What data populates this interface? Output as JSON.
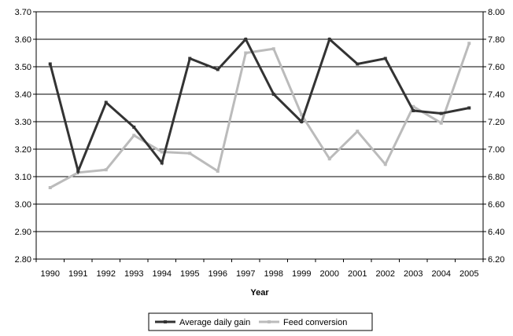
{
  "chart_data": {
    "type": "line",
    "title": "",
    "xlabel": "Year",
    "ylabel": "",
    "categories": [
      "1990",
      "1991",
      "1992",
      "1993",
      "1994",
      "1995",
      "1996",
      "1997",
      "1998",
      "1999",
      "2000",
      "2001",
      "2002",
      "2003",
      "2004",
      "2005"
    ],
    "y_left": {
      "min": 2.8,
      "max": 3.7,
      "ticks": [
        "2.80",
        "2.90",
        "3.00",
        "3.10",
        "3.20",
        "3.30",
        "3.40",
        "3.50",
        "3.60",
        "3.70"
      ]
    },
    "y_right": {
      "min": 6.2,
      "max": 8.0,
      "ticks": [
        "6.20",
        "6.40",
        "6.60",
        "6.80",
        "7.00",
        "7.20",
        "7.40",
        "7.60",
        "7.80",
        "8.00"
      ]
    },
    "grid": "horizontal",
    "legend_position": "bottom",
    "series": [
      {
        "name": "Average daily gain",
        "axis": "left",
        "color": "#333333",
        "values": [
          3.51,
          3.12,
          3.37,
          3.28,
          3.15,
          3.53,
          3.49,
          3.6,
          3.4,
          3.3,
          3.6,
          3.51,
          3.53,
          3.34,
          3.33,
          3.35
        ]
      },
      {
        "name": "Feed conversion",
        "axis": "right",
        "color": "#bbbbbb",
        "values": [
          6.72,
          6.83,
          6.85,
          7.1,
          6.98,
          6.97,
          6.84,
          7.7,
          7.73,
          7.25,
          6.93,
          7.13,
          6.89,
          7.31,
          7.19,
          7.77
        ]
      }
    ]
  }
}
